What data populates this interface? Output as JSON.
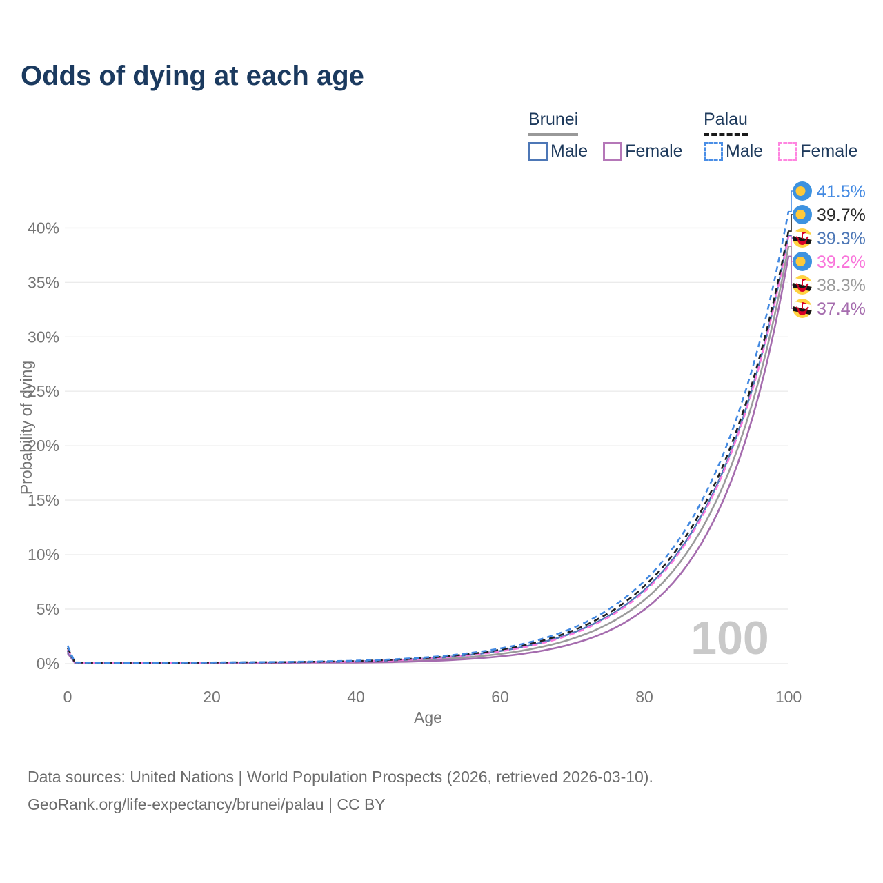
{
  "header": {
    "title": "Odds of dying at each age"
  },
  "legend": {
    "groups": [
      {
        "country": "Brunei",
        "line_style": "solid",
        "underline_color": "#999999",
        "items": [
          {
            "label": "Male",
            "color": "#4d77b6",
            "dashed": false
          },
          {
            "label": "Female",
            "color": "#b577b8",
            "dashed": false
          }
        ]
      },
      {
        "country": "Palau",
        "line_style": "dashed",
        "underline_color": "#1a1a1a",
        "items": [
          {
            "label": "Male",
            "color": "#4a8ee6",
            "dashed": true
          },
          {
            "label": "Female",
            "color": "#ff85e0",
            "dashed": true
          }
        ]
      }
    ]
  },
  "chart_data": {
    "type": "line",
    "title": "Odds of dying at each age",
    "xlabel": "Age",
    "ylabel": "Probability of dying",
    "x_ticks": [
      0,
      20,
      40,
      60,
      80,
      100
    ],
    "y_ticks_percent": [
      0,
      5,
      10,
      15,
      20,
      25,
      30,
      35,
      40
    ],
    "xlim": [
      0,
      100
    ],
    "ylim_percent": [
      0,
      43
    ],
    "grid": "horizontal",
    "watermark": "100",
    "legend_position": "top-right",
    "ages": [
      0,
      1,
      5,
      10,
      15,
      20,
      25,
      30,
      35,
      40,
      45,
      50,
      55,
      60,
      65,
      70,
      75,
      80,
      85,
      90,
      95,
      100
    ],
    "series": [
      {
        "name": "Palau Male",
        "country": "Palau",
        "sex": "Male",
        "color": "#4289e2",
        "label_color": "#4289e2",
        "dash": true,
        "flag_icon": "palau-flag-icon",
        "end_value_percent": 41.5,
        "end_label": "41.5%",
        "values_percent": [
          1.65,
          0.12,
          0.08,
          0.08,
          0.09,
          0.11,
          0.13,
          0.16,
          0.2,
          0.27,
          0.39,
          0.59,
          0.91,
          1.39,
          2.12,
          3.24,
          4.96,
          7.58,
          11.59,
          17.74,
          27.13,
          41.5
        ]
      },
      {
        "name": "Palau",
        "country": "Palau",
        "sex": "Both",
        "color": "#1f1f1f",
        "label_color": "#2b2b2b",
        "dash": true,
        "flag_icon": "palau-flag-icon",
        "end_value_percent": 39.7,
        "end_label": "39.7%",
        "values_percent": [
          1.45,
          0.11,
          0.07,
          0.07,
          0.08,
          0.1,
          0.12,
          0.14,
          0.18,
          0.23,
          0.35,
          0.54,
          0.83,
          1.27,
          1.96,
          3.01,
          4.62,
          7.11,
          10.93,
          16.8,
          25.83,
          39.7
        ]
      },
      {
        "name": "Brunei Male",
        "country": "Brunei",
        "sex": "Male",
        "color": "#4d77b6",
        "label_color": "#4d77b6",
        "dash": false,
        "flag_icon": "brunei-flag-icon",
        "end_value_percent": 39.3,
        "end_label": "39.3%",
        "values_percent": [
          1.15,
          0.1,
          0.06,
          0.06,
          0.07,
          0.09,
          0.1,
          0.12,
          0.15,
          0.2,
          0.31,
          0.48,
          0.75,
          1.16,
          1.81,
          2.81,
          4.36,
          6.76,
          10.5,
          16.3,
          25.31,
          39.3
        ]
      },
      {
        "name": "Palau Female",
        "country": "Palau",
        "sex": "Female",
        "color": "#f97ade",
        "label_color": "#f973da",
        "dash": true,
        "flag_icon": "palau-flag-icon",
        "end_value_percent": 39.2,
        "end_label": "39.2%",
        "values_percent": [
          1.3,
          0.1,
          0.06,
          0.06,
          0.07,
          0.08,
          0.1,
          0.12,
          0.14,
          0.19,
          0.29,
          0.46,
          0.72,
          1.12,
          1.74,
          2.72,
          4.24,
          6.61,
          10.32,
          16.1,
          25.12,
          39.2
        ]
      },
      {
        "name": "Brunei",
        "country": "Brunei",
        "sex": "Both",
        "color": "#9b9b9b",
        "label_color": "#9b9b9b",
        "dash": false,
        "flag_icon": "brunei-flag-icon",
        "end_value_percent": 38.3,
        "end_label": "38.3%",
        "values_percent": [
          1.05,
          0.09,
          0.05,
          0.05,
          0.06,
          0.07,
          0.08,
          0.1,
          0.12,
          0.14,
          0.22,
          0.35,
          0.56,
          0.89,
          1.43,
          2.28,
          3.65,
          5.84,
          9.35,
          14.96,
          23.94,
          38.3
        ]
      },
      {
        "name": "Brunei Female",
        "country": "Brunei",
        "sex": "Female",
        "color": "#a56cae",
        "label_color": "#a56cae",
        "dash": false,
        "flag_icon": "brunei-flag-icon",
        "end_value_percent": 37.4,
        "end_label": "37.4%",
        "values_percent": [
          0.95,
          0.08,
          0.05,
          0.05,
          0.05,
          0.06,
          0.07,
          0.08,
          0.1,
          0.1,
          0.14,
          0.24,
          0.4,
          0.66,
          1.09,
          1.81,
          2.99,
          4.96,
          8.22,
          13.62,
          22.57,
          37.4
        ]
      }
    ],
    "flag_colors": {
      "palau_blue": "#3d92e0",
      "palau_yellow": "#ffc938",
      "brunei_yellow": "#ffd343",
      "brunei_white": "#ffffff",
      "brunei_black": "#141414",
      "brunei_red": "#d80027"
    }
  },
  "footer": {
    "line1": "Data sources: United Nations | World Population Prospects (2026, retrieved 2026-03-10).",
    "line2": "GeoRank.org/life-expectancy/brunei/palau | CC BY"
  }
}
